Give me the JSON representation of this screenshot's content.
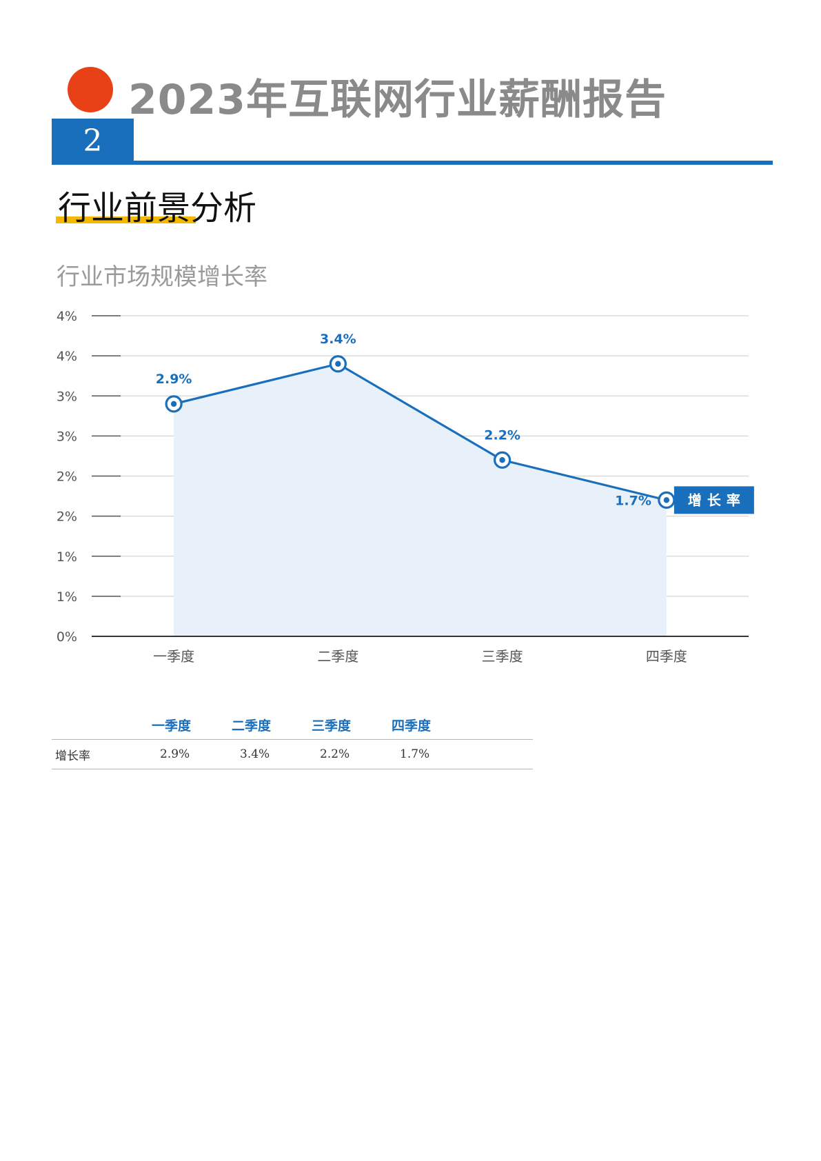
{
  "header": {
    "title": "2023年互联网行业薪酬报告",
    "section_number": "2",
    "section_title": "行业前景分析"
  },
  "colors": {
    "accent": "#1a6fbd",
    "dot": "#e84118",
    "highlight": "#f5b800",
    "area_fill": "#e8f1fa"
  },
  "chart_data": {
    "type": "area",
    "title": "行业市场规模增长率",
    "categories": [
      "一季度",
      "二季度",
      "三季度",
      "四季度"
    ],
    "series": [
      {
        "name": "增长率",
        "values": [
          2.9,
          3.4,
          2.2,
          1.7
        ],
        "labels": [
          "2.9%",
          "3.4%",
          "2.2%",
          "1.7%"
        ]
      }
    ],
    "y_tick_labels": [
      "0%",
      "1%",
      "1%",
      "2%",
      "2%",
      "3%",
      "3%",
      "4%",
      "4%"
    ],
    "ylim": [
      0,
      4
    ],
    "grid": true,
    "legend": "right-end"
  },
  "table": {
    "headers": [
      "一季度",
      "二季度",
      "三季度",
      "四季度"
    ],
    "rows": [
      {
        "label": "增长率",
        "values": [
          "2.9%",
          "3.4%",
          "2.2%",
          "1.7%"
        ]
      }
    ]
  }
}
